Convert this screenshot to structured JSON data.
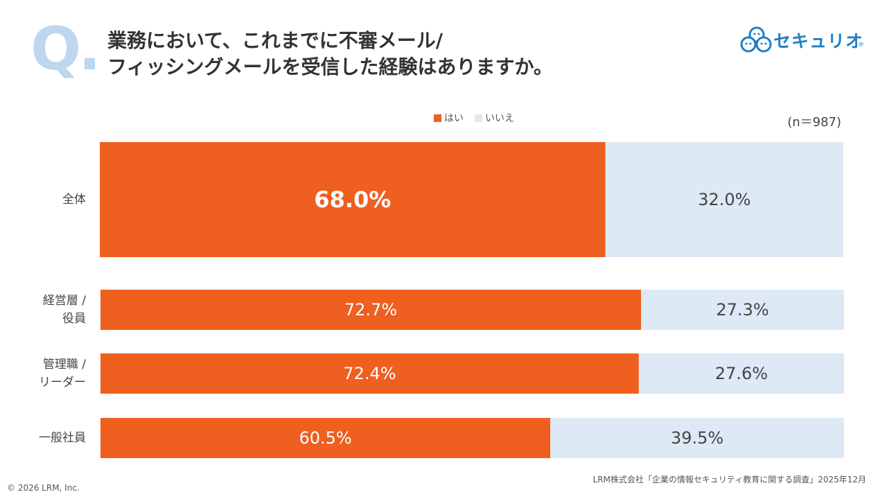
{
  "question_mark": "Q.",
  "title": {
    "line1": "業務において、これまでに不審メール/",
    "line2": "フィッシングメールを受信した経験はありますか。"
  },
  "logo": {
    "text": "セキュリオ",
    "reg": "®"
  },
  "colors": {
    "yes": "#ee5f20",
    "no": "#dde9f5",
    "q_mark": "#bcd7ee",
    "logo": "#1f7fc6"
  },
  "sample_size": "(n＝987)",
  "chart_data": {
    "type": "bar",
    "orientation": "horizontal-stacked-100",
    "legend": [
      "はい",
      "いいえ"
    ],
    "categories": [
      {
        "label_lines": [
          "全体"
        ],
        "yes": 68.0,
        "no": 32.0,
        "yes_label": "68.0%",
        "no_label": "32.0%"
      },
      {
        "label_lines": [
          "経営層 /",
          "役員"
        ],
        "yes": 72.7,
        "no": 27.3,
        "yes_label": "72.7%",
        "no_label": "27.3%"
      },
      {
        "label_lines": [
          "管理職 /",
          "リーダー"
        ],
        "yes": 72.4,
        "no": 27.6,
        "yes_label": "72.4%",
        "no_label": "27.6%"
      },
      {
        "label_lines": [
          "一般社員"
        ],
        "yes": 60.5,
        "no": 39.5,
        "yes_label": "60.5%",
        "no_label": "39.5%"
      }
    ],
    "xlim": [
      0,
      100
    ]
  },
  "footer": {
    "copyright": "© 2026 LRM, Inc.",
    "source": "LRM株式会社「企業の情報セキュリティ教育に関する調査」2025年12月"
  }
}
